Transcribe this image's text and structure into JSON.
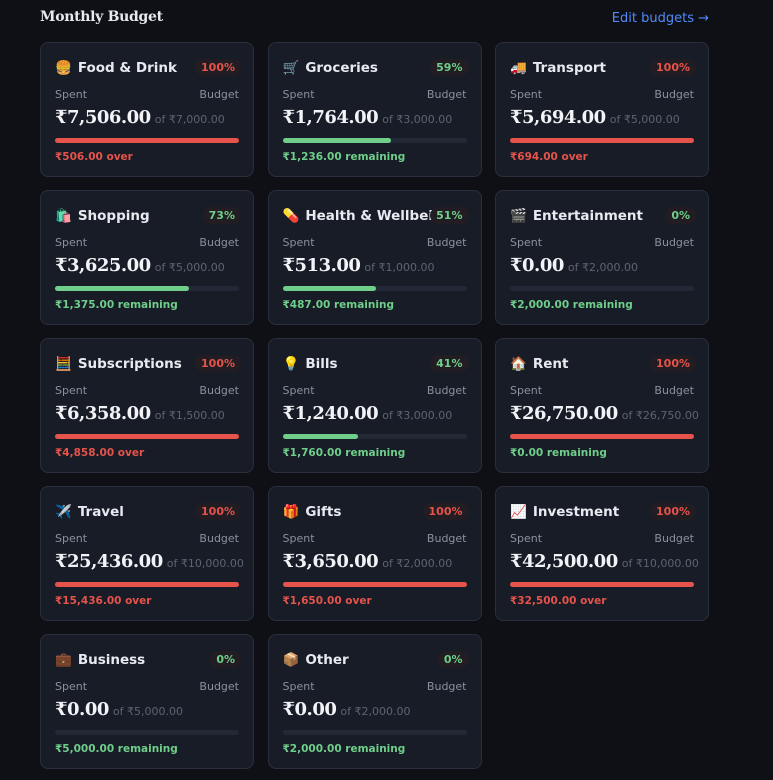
{
  "header": {
    "title": "Monthly Budget",
    "link": "Edit budgets →"
  },
  "labels": {
    "spent": "Spent",
    "budget": "Budget"
  },
  "cards": [
    {
      "icon": "🍔",
      "name": "Food & Drink",
      "progress": {
        "value": 100,
        "label": "100%"
      },
      "spent": "₹7,506.00",
      "of": "of ₹7,000.00",
      "status": "₹506.00 over",
      "color": "#e5534b",
      "status_color": "#e5534b"
    },
    {
      "icon": "🛒",
      "name": "Groceries",
      "progress": {
        "value": 59,
        "label": "59%"
      },
      "spent": "₹1,764.00",
      "of": "of ₹3,000.00",
      "status": "₹1,236.00 remaining",
      "color": "#6fcf8a",
      "status_color": "#6fcf8a"
    },
    {
      "icon": "🚚",
      "name": "Transport",
      "progress": {
        "value": 100,
        "label": "100%"
      },
      "spent": "₹5,694.00",
      "of": "of ₹5,000.00",
      "status": "₹694.00 over",
      "color": "#e5534b",
      "status_color": "#e5534b"
    },
    {
      "icon": "🛍️",
      "name": "Shopping",
      "progress": {
        "value": 73,
        "label": "73%"
      },
      "spent": "₹3,625.00",
      "of": "of ₹5,000.00",
      "status": "₹1,375.00 remaining",
      "color": "#6fcf8a",
      "status_color": "#6fcf8a"
    },
    {
      "icon": "💊",
      "name": "Health & Wellbeing",
      "progress": {
        "value": 51,
        "label": "51%"
      },
      "spent": "₹513.00",
      "of": "of ₹1,000.00",
      "status": "₹487.00 remaining",
      "color": "#6fcf8a",
      "status_color": "#6fcf8a"
    },
    {
      "icon": "🎬",
      "name": "Entertainment",
      "progress": {
        "value": 0,
        "label": "0%"
      },
      "spent": "₹0.00",
      "of": "of ₹2,000.00",
      "status": "₹2,000.00 remaining",
      "color": "#6fcf8a",
      "status_color": "#6fcf8a"
    },
    {
      "icon": "🧮",
      "name": "Subscriptions",
      "progress": {
        "value": 100,
        "label": "100%"
      },
      "spent": "₹6,358.00",
      "of": "of ₹1,500.00",
      "status": "₹4,858.00 over",
      "color": "#e5534b",
      "status_color": "#e5534b"
    },
    {
      "icon": "💡",
      "name": "Bills",
      "progress": {
        "value": 41,
        "label": "41%"
      },
      "spent": "₹1,240.00",
      "of": "of ₹3,000.00",
      "status": "₹1,760.00 remaining",
      "color": "#6fcf8a",
      "status_color": "#6fcf8a"
    },
    {
      "icon": "🏠",
      "name": "Rent",
      "progress": {
        "value": 100,
        "label": "100%"
      },
      "spent": "₹26,750.00",
      "of": "of ₹26,750.00",
      "status": "₹0.00 remaining",
      "color": "#e5534b",
      "status_color": "#6fcf8a"
    },
    {
      "icon": "✈️",
      "name": "Travel",
      "progress": {
        "value": 100,
        "label": "100%"
      },
      "spent": "₹25,436.00",
      "of": "of ₹10,000.00",
      "status": "₹15,436.00 over",
      "color": "#e5534b",
      "status_color": "#e5534b"
    },
    {
      "icon": "🎁",
      "name": "Gifts",
      "progress": {
        "value": 100,
        "label": "100%"
      },
      "spent": "₹3,650.00",
      "of": "of ₹2,000.00",
      "status": "₹1,650.00 over",
      "color": "#e5534b",
      "status_color": "#e5534b"
    },
    {
      "icon": "📈",
      "name": "Investment",
      "progress": {
        "value": 100,
        "label": "100%"
      },
      "spent": "₹42,500.00",
      "of": "of ₹10,000.00",
      "status": "₹32,500.00 over",
      "color": "#e5534b",
      "status_color": "#e5534b"
    },
    {
      "icon": "💼",
      "name": "Business",
      "progress": {
        "value": 0,
        "label": "0%"
      },
      "spent": "₹0.00",
      "of": "of ₹5,000.00",
      "status": "₹5,000.00 remaining",
      "color": "#6fcf8a",
      "status_color": "#6fcf8a"
    },
    {
      "icon": "📦",
      "name": "Other",
      "progress": {
        "value": 0,
        "label": "0%"
      },
      "spent": "₹0.00",
      "of": "of ₹2,000.00",
      "status": "₹2,000.00 remaining",
      "color": "#6fcf8a",
      "status_color": "#6fcf8a"
    }
  ]
}
